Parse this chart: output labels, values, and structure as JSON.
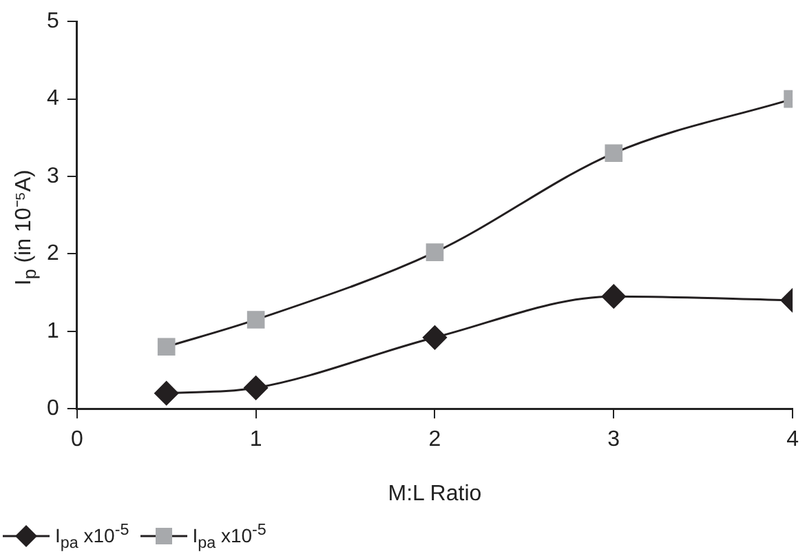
{
  "chart_data": {
    "type": "line",
    "xlabel": "M:L Ratio",
    "ylabel": "I$_{p}$ (in 10⁻⁵A)",
    "x": [
      0.5,
      1,
      2,
      3,
      4
    ],
    "series": [
      {
        "name": "I$_{pa}$ x10$^{-5}$",
        "color": "#231f20",
        "marker": "diamond",
        "values": [
          0.2,
          0.27,
          0.92,
          1.45,
          1.4
        ]
      },
      {
        "name": "I$_{pa}$ x10$^{-5}$",
        "color": "#a7a9ac",
        "marker": "square",
        "values": [
          0.8,
          1.15,
          2.02,
          3.3,
          4.0
        ]
      }
    ],
    "xlim": [
      0,
      4
    ],
    "xticks": [
      0,
      1,
      2,
      3,
      4
    ],
    "ylim": [
      0,
      5
    ],
    "yticks": [
      0,
      1,
      2,
      3,
      4,
      5
    ],
    "grid": false,
    "legend": "bottom left"
  }
}
